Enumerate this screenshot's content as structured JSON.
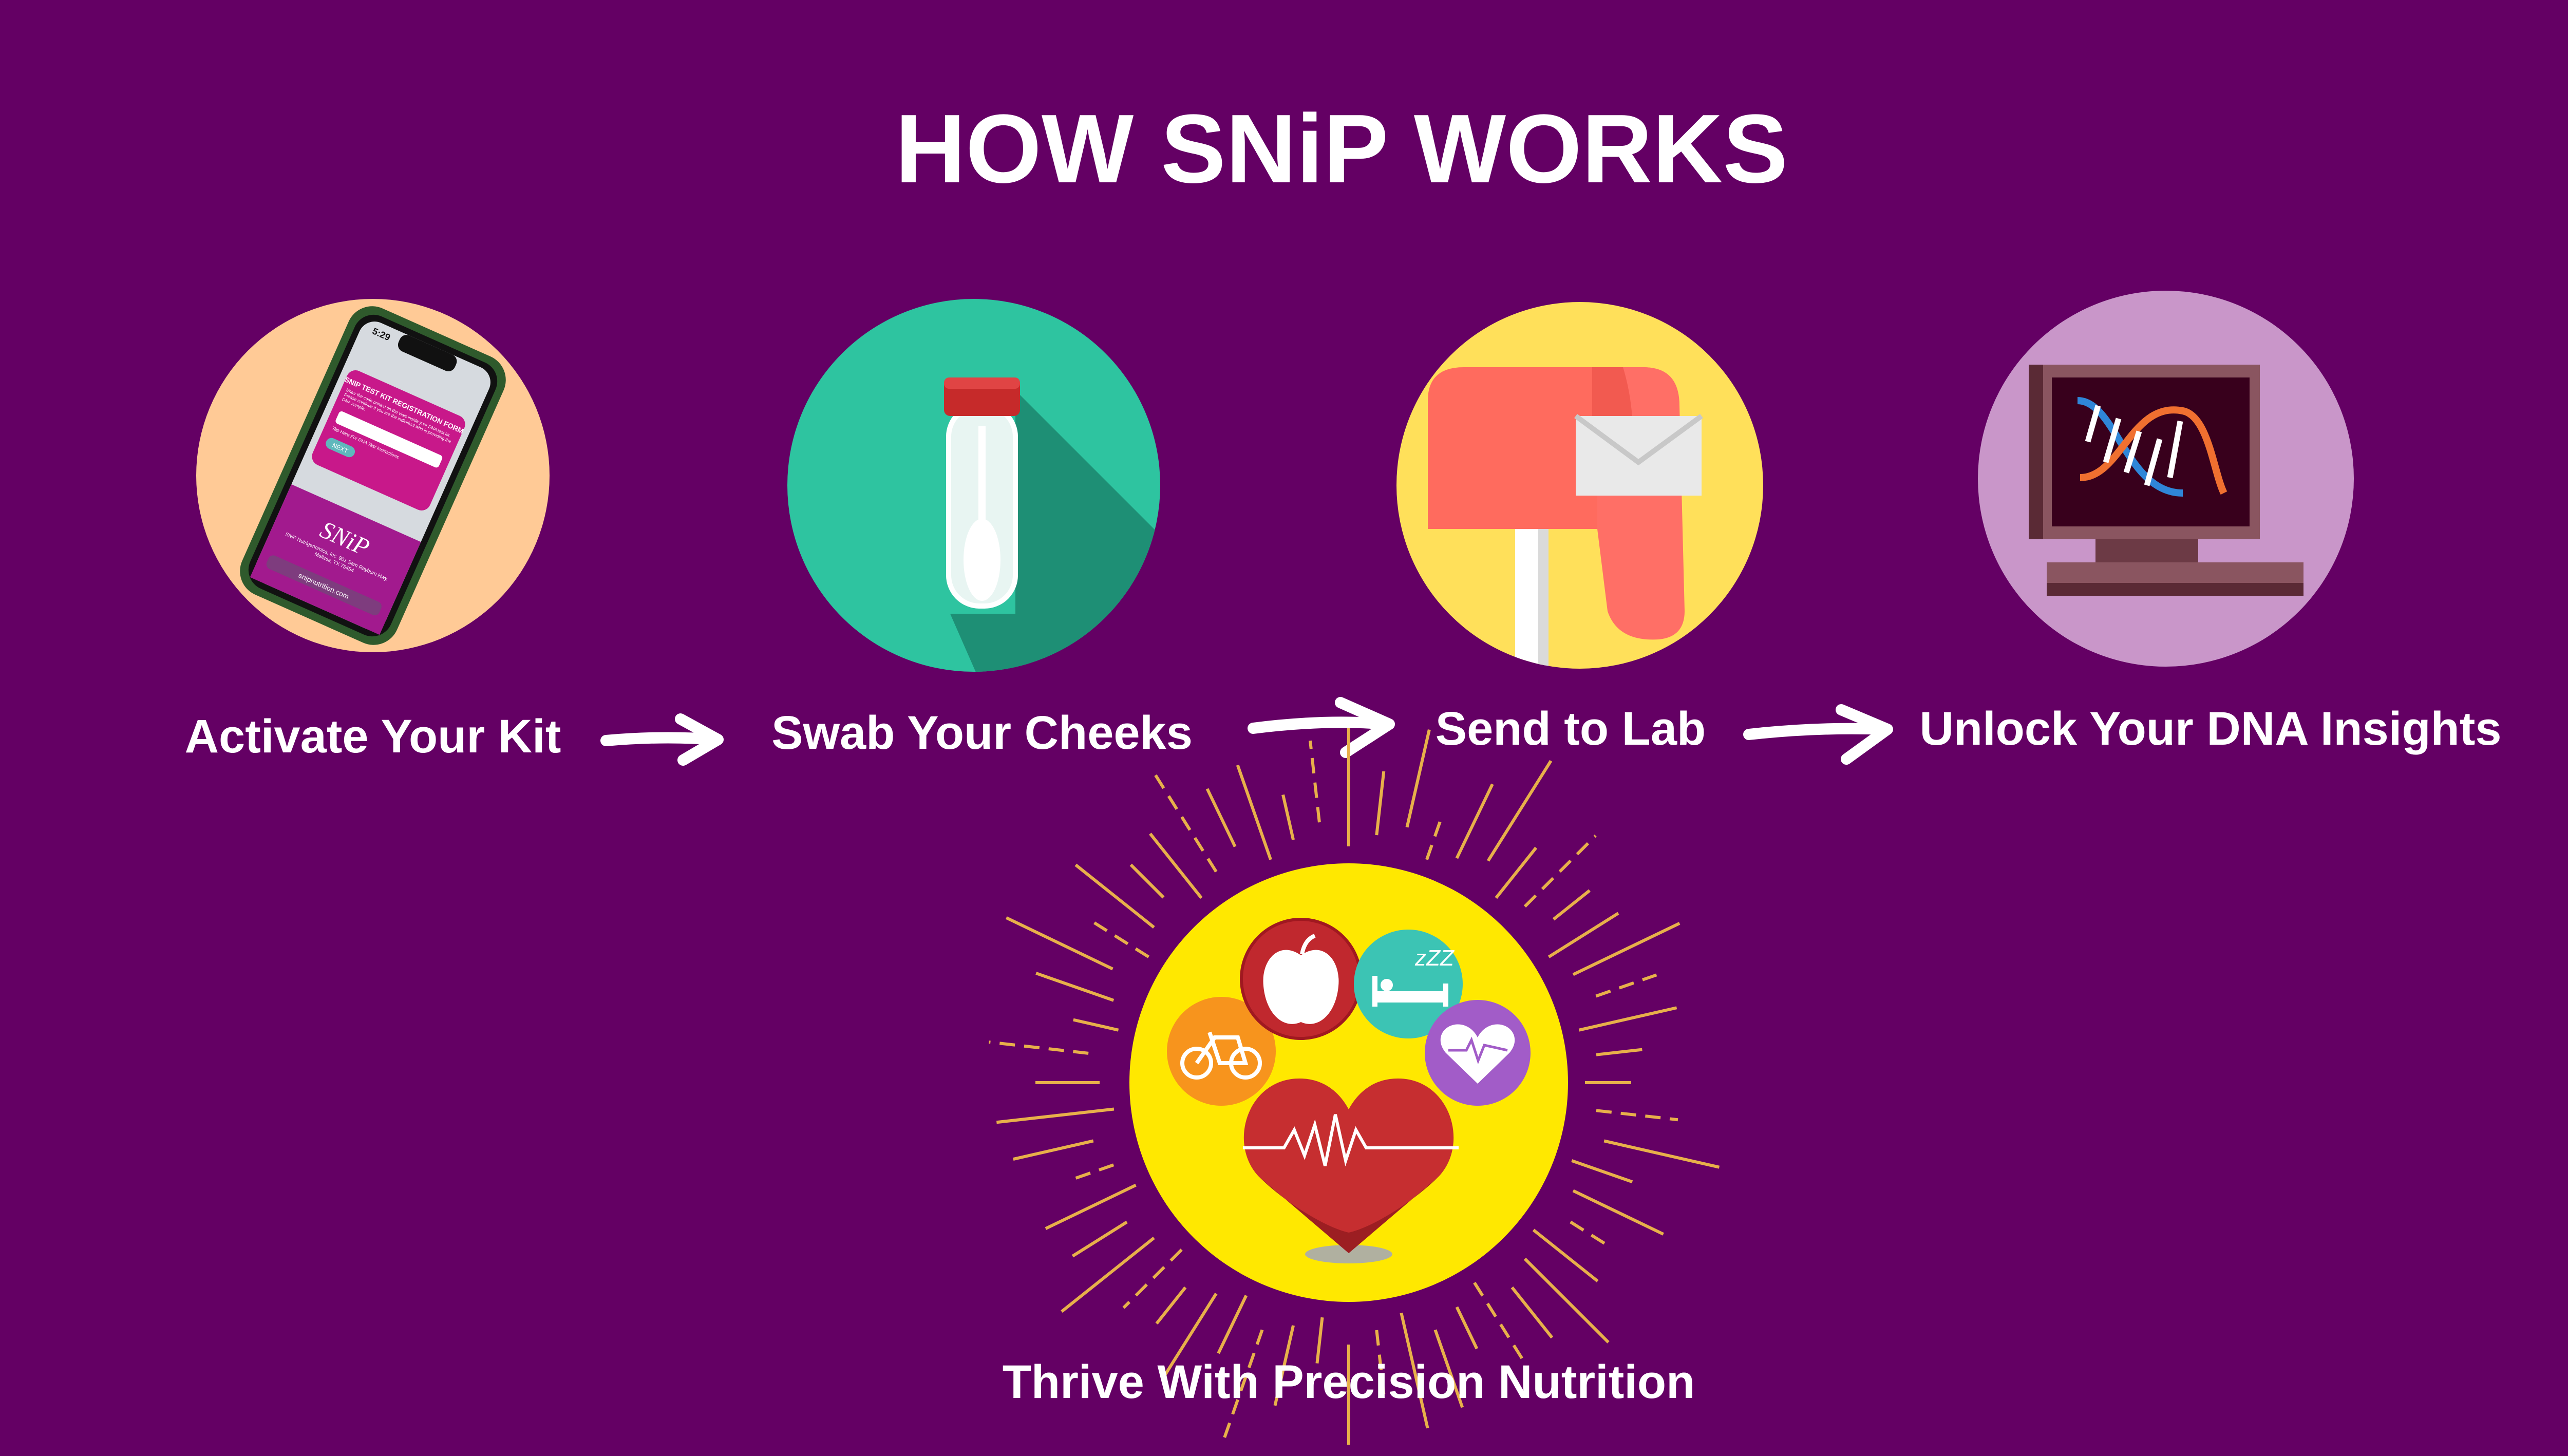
{
  "title": "HOW SNiP WORKS",
  "colors": {
    "background": "#640064",
    "step1_circle": "#FFCA96",
    "step2_circle": "#2EC4A0",
    "step3_circle": "#FFE05A",
    "step4_circle": "#C996C9",
    "result_circle": "#FFE800"
  },
  "steps": [
    {
      "label": "Activate Your Kit",
      "icon": "smartphone-icon"
    },
    {
      "label": "Swab Your Cheeks",
      "icon": "test-tube-icon"
    },
    {
      "label": "Send to Lab",
      "icon": "mailbox-icon"
    },
    {
      "label": "Unlock Your DNA Insights",
      "icon": "dna-computer-icon"
    }
  ],
  "result": {
    "label": "Thrive With Precision Nutrition",
    "icons": [
      "apple-icon",
      "sleep-icon",
      "bicycle-icon",
      "heart-icon",
      "heartbeat-heart-icon"
    ]
  },
  "phone_screen": {
    "time": "5:29",
    "form_title": "SNIP TEST KIT REGISTRATION FORM",
    "instructions": "Enter the code printed on the vials inside your DNA test kit. Please continue if you are the individual who is providing the DNA sample.",
    "help_link": "Tap Here For DNA Test Instructions.",
    "next_button": "NEXT",
    "address": "SNiP Nutrigenomics, Inc. 901 Sam Rayburn Hwy. Melissa, TX 75454",
    "url": "snipnutrition.com"
  }
}
